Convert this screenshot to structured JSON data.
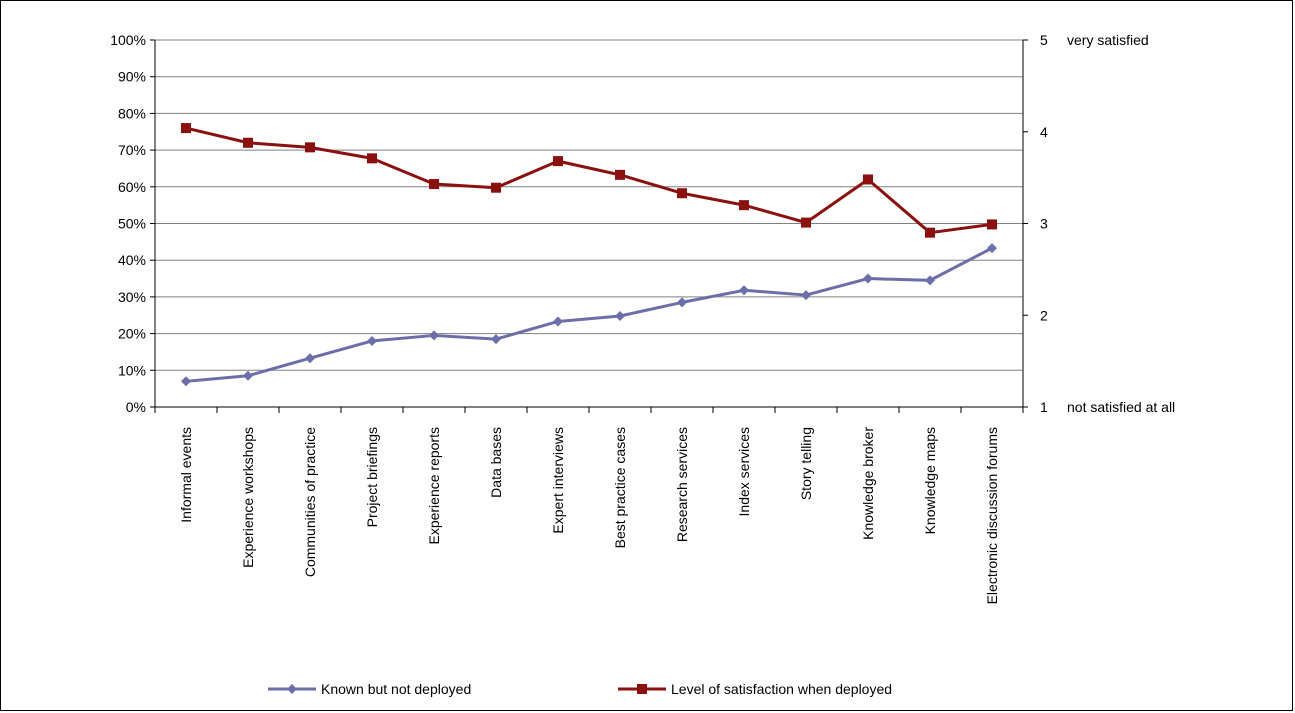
{
  "chart_data": {
    "type": "line",
    "categories": [
      "Informal events",
      "Experience workshops",
      "Communities of practice",
      "Project briefings",
      "Experience reports",
      "Data bases",
      "Expert interviews",
      "Best practice cases",
      "Research services",
      "Index services",
      "Story telling",
      "Knowledge broker",
      "Knowledge maps",
      "Electronic discussion forums"
    ],
    "y_left": {
      "min": 0,
      "max": 100,
      "step": 10,
      "ticks": [
        "0%",
        "10%",
        "20%",
        "30%",
        "40%",
        "50%",
        "60%",
        "70%",
        "80%",
        "90%",
        "100%"
      ]
    },
    "y_right": {
      "min": 1,
      "max": 5,
      "step": 1,
      "ticks": [
        "1",
        "2",
        "3",
        "4",
        "5"
      ],
      "top_label": "very satisfied",
      "bottom_label": "not satisfied at all"
    },
    "grid": true,
    "legend_position": "bottom",
    "series": [
      {
        "name": "Known but not deployed",
        "axis": "left",
        "color": "#6b6ea8",
        "marker": "diamond",
        "values": [
          7,
          8.5,
          13.3,
          18,
          19.5,
          18.5,
          23.3,
          24.8,
          28.5,
          31.8,
          30.5,
          35,
          34.5,
          43.3
        ]
      },
      {
        "name": "Level of satisfaction when deployed",
        "axis": "right",
        "color": "#8b1010",
        "marker": "square",
        "values": [
          4.04,
          3.88,
          3.83,
          3.71,
          3.43,
          3.39,
          3.68,
          3.53,
          3.33,
          3.2,
          3.01,
          3.48,
          2.9,
          2.99
        ]
      }
    ]
  }
}
